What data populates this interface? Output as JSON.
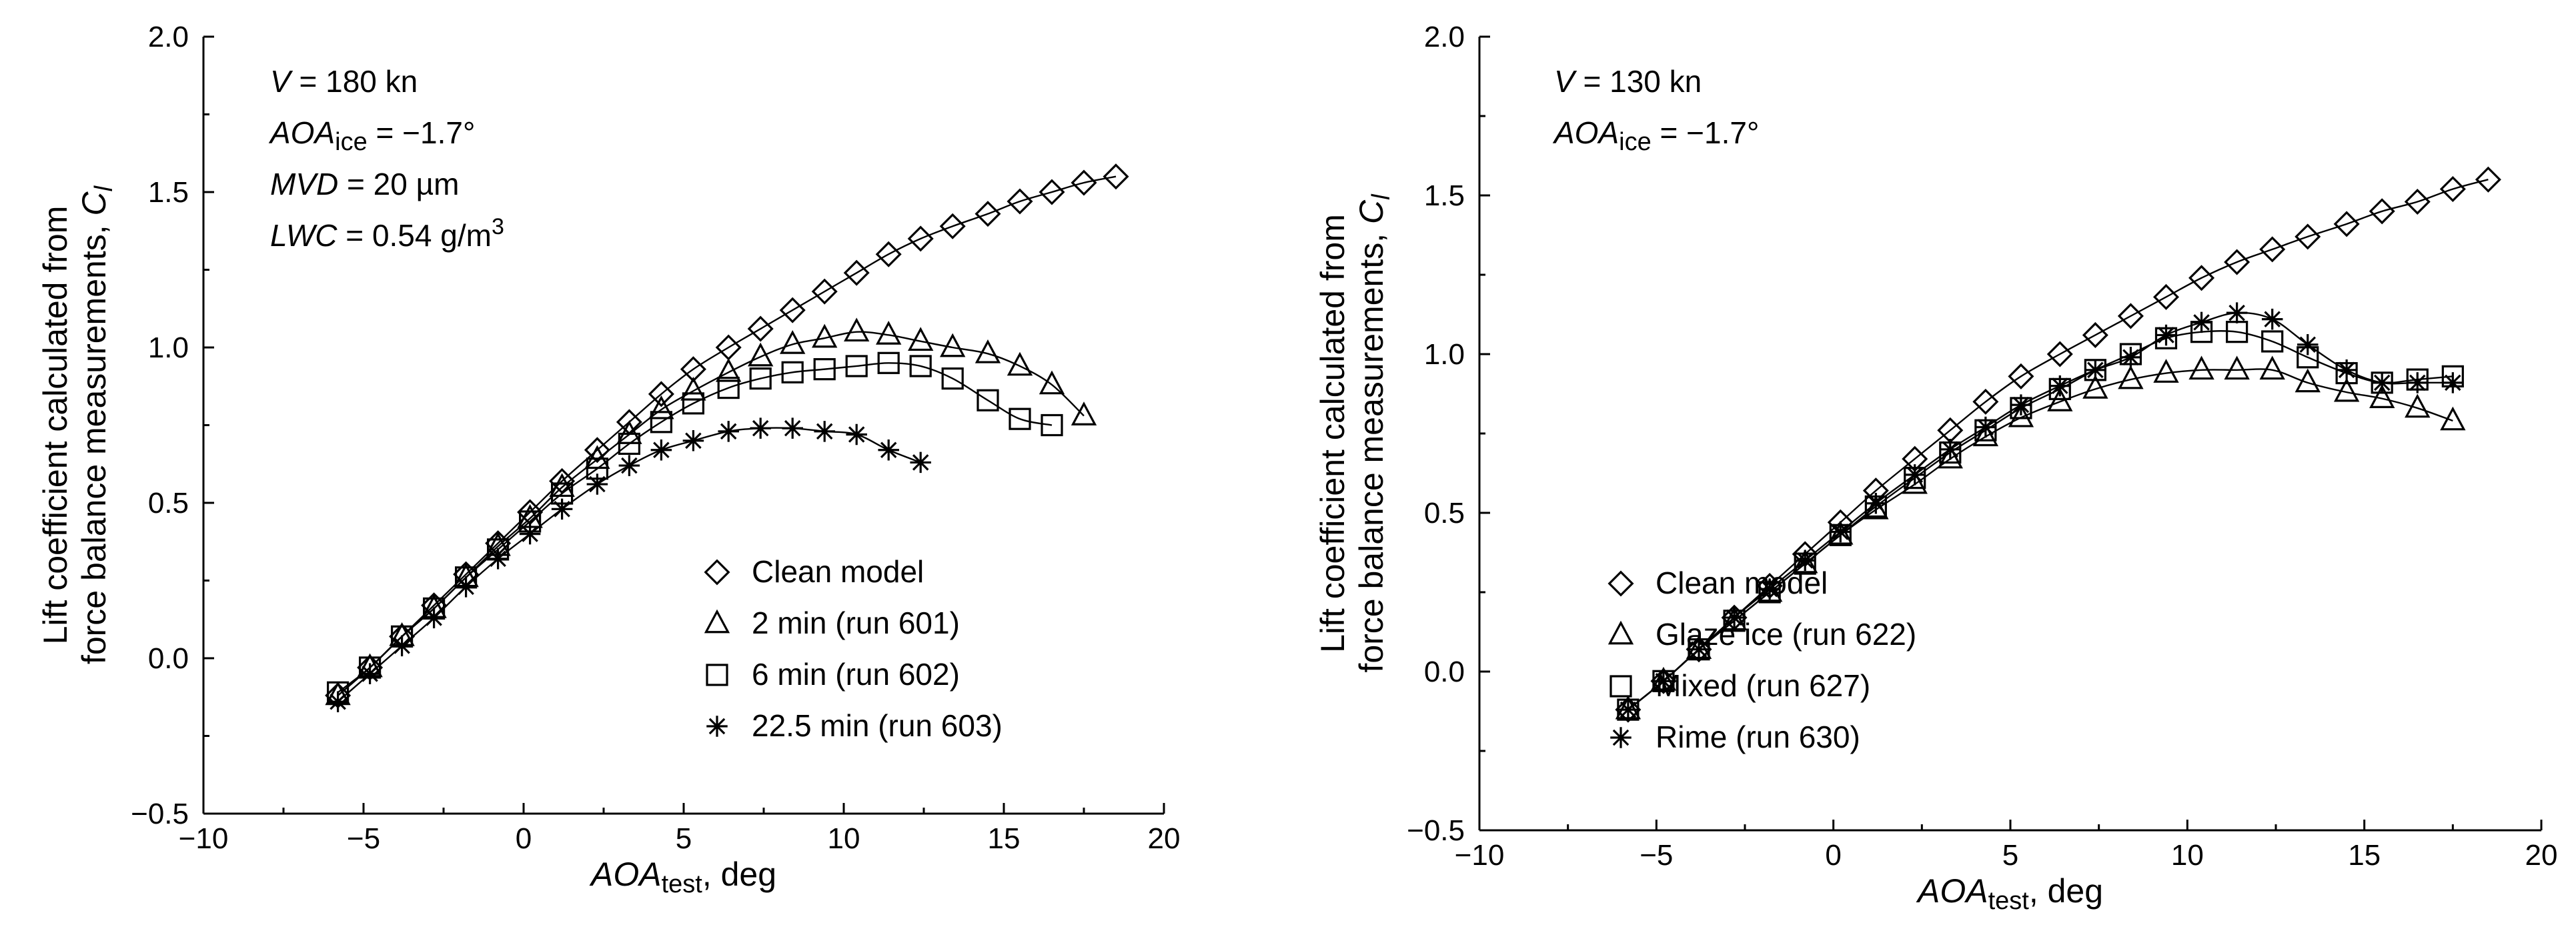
{
  "chart_data": [
    {
      "type": "line",
      "title": "",
      "xlabel_main": "AOA",
      "xlabel_sub": "test",
      "xlabel_suffix": ", deg",
      "ylabel_line1": "Lift coefficient calculated from",
      "ylabel_line2": "force balance measurements, ",
      "ylabel_symbol": "C",
      "ylabel_symbol_sub": "l",
      "xlim": [
        -10,
        20
      ],
      "ylim": [
        -0.5,
        2.0
      ],
      "xticks": [
        "−10",
        "−5",
        "0",
        "5",
        "10",
        "15",
        "20"
      ],
      "xtick_values": [
        -10,
        -5,
        0,
        5,
        10,
        15,
        20
      ],
      "yticks": [
        "−0.5",
        "0.0",
        "0.5",
        "1.0",
        "1.5",
        "2.0"
      ],
      "ytick_values": [
        -0.5,
        0.0,
        0.5,
        1.0,
        1.5,
        2.0
      ],
      "grid": false,
      "annotations": {
        "v": {
          "name": "V",
          "value": " = 180 kn"
        },
        "aoa_ice": {
          "name": "AOA",
          "sub": "ice",
          "value": " = −1.7°"
        },
        "mvd": {
          "name": "MVD",
          "value": " = 20 µm"
        },
        "lwc": {
          "name": "LWC",
          "value": " = 0.54 g/m",
          "sup": "3"
        }
      },
      "legend_position": "bottom-right",
      "series": [
        {
          "name": "Clean model",
          "marker": "diamond",
          "x": [
            -5.8,
            -4.8,
            -3.8,
            -2.8,
            -1.8,
            -0.8,
            0.2,
            1.2,
            2.3,
            3.3,
            4.3,
            5.3,
            6.4,
            7.4,
            8.4,
            9.4,
            10.4,
            11.4,
            12.4,
            13.4,
            14.5,
            15.5,
            16.5,
            17.5,
            18.5
          ],
          "y": [
            -0.12,
            -0.03,
            0.07,
            0.17,
            0.27,
            0.37,
            0.47,
            0.57,
            0.67,
            0.76,
            0.85,
            0.93,
            1.0,
            1.06,
            1.12,
            1.18,
            1.24,
            1.3,
            1.35,
            1.39,
            1.43,
            1.47,
            1.5,
            1.53,
            1.55
          ]
        },
        {
          "name": "2 min (run 601)",
          "marker": "triangle",
          "x": [
            -5.8,
            -4.8,
            -3.8,
            -2.8,
            -1.8,
            -0.8,
            0.2,
            1.2,
            2.3,
            3.3,
            4.3,
            5.3,
            6.4,
            7.4,
            8.4,
            9.4,
            10.4,
            11.4,
            12.4,
            13.4,
            14.5,
            15.5,
            16.5,
            17.5
          ],
          "y": [
            -0.12,
            -0.03,
            0.07,
            0.16,
            0.26,
            0.36,
            0.45,
            0.55,
            0.64,
            0.72,
            0.8,
            0.86,
            0.92,
            0.97,
            1.01,
            1.03,
            1.05,
            1.04,
            1.02,
            1.0,
            0.98,
            0.94,
            0.88,
            0.78
          ]
        },
        {
          "name": "6 min (run 602)",
          "marker": "square",
          "x": [
            -5.8,
            -4.8,
            -3.8,
            -2.8,
            -1.8,
            -0.8,
            0.2,
            1.2,
            2.3,
            3.3,
            4.3,
            5.3,
            6.4,
            7.4,
            8.4,
            9.4,
            10.4,
            11.4,
            12.4,
            13.4,
            14.5,
            15.5,
            16.5
          ],
          "y": [
            -0.11,
            -0.03,
            0.07,
            0.16,
            0.26,
            0.35,
            0.44,
            0.53,
            0.61,
            0.69,
            0.76,
            0.82,
            0.87,
            0.9,
            0.92,
            0.93,
            0.94,
            0.95,
            0.94,
            0.9,
            0.83,
            0.77,
            0.75
          ]
        },
        {
          "name": "22.5 min (run 603)",
          "marker": "asterisk",
          "x": [
            -5.8,
            -4.8,
            -3.8,
            -2.8,
            -1.8,
            -0.8,
            0.2,
            1.2,
            2.3,
            3.3,
            4.3,
            5.3,
            6.4,
            7.4,
            8.4,
            9.4,
            10.4,
            11.4,
            12.4
          ],
          "y": [
            -0.14,
            -0.05,
            0.04,
            0.13,
            0.23,
            0.32,
            0.4,
            0.48,
            0.56,
            0.62,
            0.67,
            0.7,
            0.73,
            0.74,
            0.74,
            0.73,
            0.72,
            0.67,
            0.63
          ]
        }
      ]
    },
    {
      "type": "line",
      "title": "",
      "xlabel_main": "AOA",
      "xlabel_sub": "test",
      "xlabel_suffix": ", deg",
      "ylabel_line1": "Lift coefficient calculated from",
      "ylabel_line2": "force balance measurements, ",
      "ylabel_symbol": "C",
      "ylabel_symbol_sub": "l",
      "xlim": [
        -10,
        20
      ],
      "ylim": [
        -0.5,
        2.0
      ],
      "xticks": [
        "−10",
        "−5",
        "0",
        "5",
        "10",
        "15",
        "20"
      ],
      "xtick_values": [
        -10,
        -5,
        0,
        5,
        10,
        15,
        20
      ],
      "yticks": [
        "−0.5",
        "0.0",
        "0.5",
        "1.0",
        "1.5",
        "2.0"
      ],
      "ytick_values": [
        -0.5,
        0.0,
        0.5,
        1.0,
        1.5,
        2.0
      ],
      "grid": false,
      "annotations": {
        "v": {
          "name": "V",
          "value": " = 130 kn"
        },
        "aoa_ice": {
          "name": "AOA",
          "sub": "ice",
          "value": " = −1.7°"
        }
      },
      "legend_position": "bottom-right",
      "series": [
        {
          "name": "Clean model",
          "marker": "diamond",
          "x": [
            -5.8,
            -4.8,
            -3.8,
            -2.8,
            -1.8,
            -0.8,
            0.2,
            1.2,
            2.3,
            3.3,
            4.3,
            5.3,
            6.4,
            7.4,
            8.4,
            9.4,
            10.4,
            11.4,
            12.4,
            13.4,
            14.5,
            15.5,
            16.5,
            17.5,
            18.5
          ],
          "y": [
            -0.12,
            -0.03,
            0.07,
            0.17,
            0.27,
            0.37,
            0.47,
            0.57,
            0.67,
            0.76,
            0.85,
            0.93,
            1.0,
            1.06,
            1.12,
            1.18,
            1.24,
            1.29,
            1.33,
            1.37,
            1.41,
            1.45,
            1.48,
            1.52,
            1.55
          ]
        },
        {
          "name": "Glaze ice (run 622)",
          "marker": "triangle",
          "x": [
            -5.8,
            -4.8,
            -3.8,
            -2.8,
            -1.8,
            -0.8,
            0.2,
            1.2,
            2.3,
            3.3,
            4.3,
            5.3,
            6.4,
            7.4,
            8.4,
            9.4,
            10.4,
            11.4,
            12.4,
            13.4,
            14.5,
            15.5,
            16.5,
            17.5
          ],
          "y": [
            -0.12,
            -0.03,
            0.07,
            0.16,
            0.25,
            0.34,
            0.43,
            0.51,
            0.59,
            0.67,
            0.74,
            0.8,
            0.85,
            0.89,
            0.92,
            0.94,
            0.95,
            0.95,
            0.95,
            0.91,
            0.88,
            0.86,
            0.83,
            0.79
          ]
        },
        {
          "name": "Mixed (run 627)",
          "marker": "square",
          "x": [
            -5.8,
            -4.8,
            -3.8,
            -2.8,
            -1.8,
            -0.8,
            0.2,
            1.2,
            2.3,
            3.3,
            4.3,
            5.3,
            6.4,
            7.4,
            8.4,
            9.4,
            10.4,
            11.4,
            12.4,
            13.4,
            14.5,
            15.5,
            16.5,
            17.5
          ],
          "y": [
            -0.12,
            -0.03,
            0.07,
            0.16,
            0.25,
            0.34,
            0.43,
            0.52,
            0.61,
            0.69,
            0.76,
            0.83,
            0.89,
            0.95,
            1.0,
            1.05,
            1.07,
            1.07,
            1.04,
            0.99,
            0.94,
            0.91,
            0.92,
            0.93
          ]
        },
        {
          "name": "Rime (run 630)",
          "marker": "asterisk",
          "x": [
            -5.8,
            -4.8,
            -3.8,
            -2.8,
            -1.8,
            -0.8,
            0.2,
            1.2,
            2.3,
            3.3,
            4.3,
            5.3,
            6.4,
            7.4,
            8.4,
            9.4,
            10.4,
            11.4,
            12.4,
            13.4,
            14.5,
            15.5,
            16.5,
            17.5
          ],
          "y": [
            -0.12,
            -0.03,
            0.07,
            0.17,
            0.26,
            0.35,
            0.44,
            0.53,
            0.62,
            0.7,
            0.77,
            0.84,
            0.9,
            0.95,
            0.99,
            1.06,
            1.1,
            1.13,
            1.11,
            1.03,
            0.95,
            0.91,
            0.91,
            0.91
          ]
        }
      ]
    }
  ]
}
